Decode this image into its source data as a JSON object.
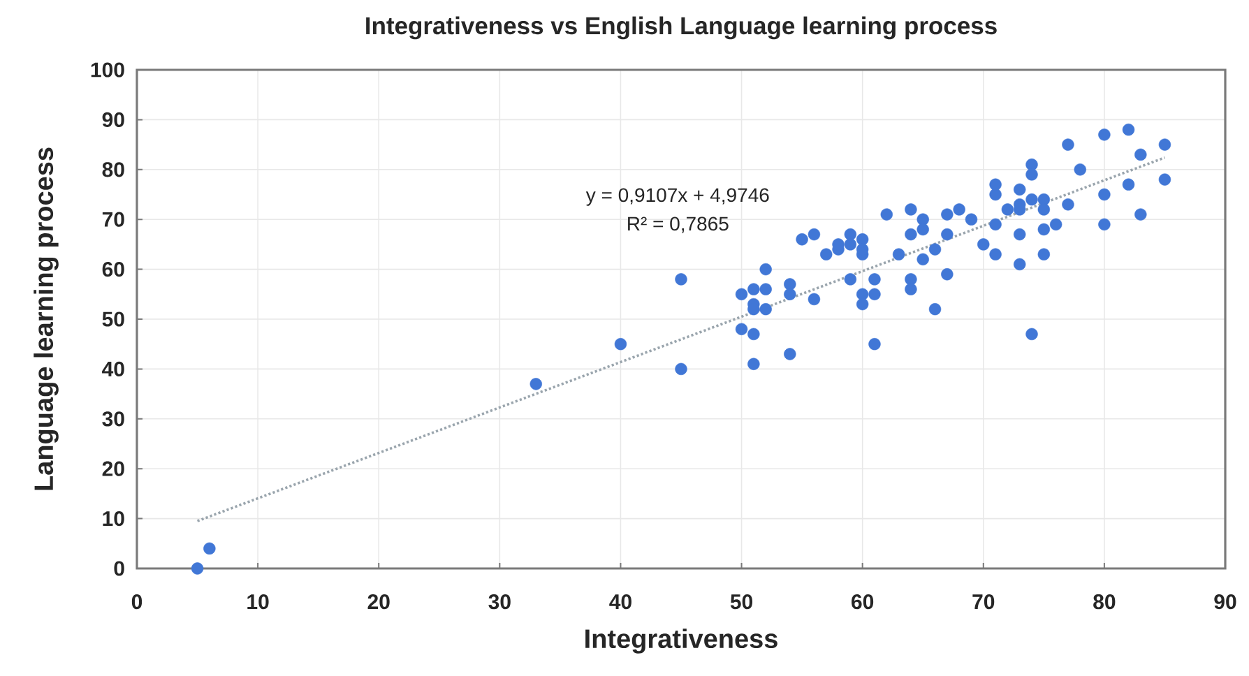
{
  "chart_data": {
    "type": "scatter",
    "title": "Integrativeness vs English Language learning process",
    "xlabel": "Integrativeness",
    "ylabel": "Language learning process",
    "xlim": [
      0,
      90
    ],
    "ylim": [
      0,
      100
    ],
    "xticks": [
      0,
      10,
      20,
      30,
      40,
      50,
      60,
      70,
      80,
      90
    ],
    "yticks": [
      0,
      10,
      20,
      30,
      40,
      50,
      60,
      70,
      80,
      90,
      100
    ],
    "grid": true,
    "marker": "circle",
    "annotations": [
      "y = 0,9107x + 4,9746",
      "R² = 0,7865"
    ],
    "series": [
      {
        "color": "#4177d6",
        "x": [
          5,
          6,
          33,
          40,
          45,
          45,
          50,
          51,
          52,
          51,
          51,
          52,
          52,
          50,
          51,
          51,
          54,
          54,
          54,
          56,
          55,
          56,
          57,
          58,
          59,
          59,
          60,
          60,
          59,
          61,
          60,
          60,
          61,
          61,
          62,
          63,
          64,
          64,
          65,
          65,
          65,
          64,
          64,
          66,
          67,
          67,
          68,
          69,
          67,
          66,
          70,
          71,
          71,
          71,
          71,
          72,
          73,
          73,
          73,
          74,
          74,
          73,
          74,
          75,
          73,
          75,
          74,
          75,
          75,
          76,
          77,
          77,
          78,
          80,
          80,
          80,
          82,
          83,
          82,
          83,
          85,
          85,
          60,
          58
        ],
        "values": [
          0,
          4,
          37,
          45,
          58,
          40,
          55,
          56,
          56,
          53,
          52,
          52,
          60,
          48,
          47,
          41,
          57,
          55,
          43,
          54,
          66,
          67,
          63,
          64,
          67,
          65,
          66,
          63,
          58,
          58,
          55,
          53,
          55,
          45,
          71,
          63,
          72,
          67,
          70,
          68,
          62,
          58,
          56,
          64,
          67,
          71,
          72,
          70,
          59,
          52,
          65,
          63,
          69,
          75,
          77,
          72,
          76,
          67,
          61,
          81,
          79,
          73,
          74,
          74,
          72,
          72,
          47,
          68,
          63,
          69,
          73,
          85,
          80,
          87,
          75,
          69,
          88,
          83,
          77,
          71,
          85,
          78,
          64,
          65
        ]
      },
      {
        "type": "line",
        "color": "#9aa5ad",
        "line_style": "dotted",
        "marker": "none",
        "x": [
          5,
          85
        ],
        "values": [
          9.5,
          82.4
        ]
      }
    ]
  }
}
